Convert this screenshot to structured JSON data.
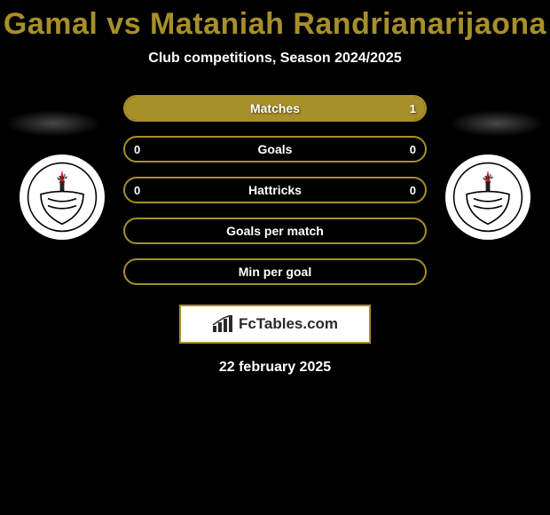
{
  "header": {
    "title": "Gamal vs Mataniah Randrianarijaona",
    "title_color": "#a78f2a",
    "subtitle": "Club competitions, Season 2024/2025"
  },
  "colors": {
    "accent": "#a78f2a",
    "accent_light": "#bfa63a",
    "background": "#000000",
    "text": "#ffffff"
  },
  "stats": {
    "type": "comparison-bars",
    "border_color": "#a78f2a",
    "rows": [
      {
        "label": "Matches",
        "left": "",
        "right": "1",
        "fill_side": "right",
        "fill_pct": 100,
        "fill_color": "#a78f2a"
      },
      {
        "label": "Goals",
        "left": "0",
        "right": "0",
        "fill_side": "none",
        "fill_pct": 0,
        "fill_color": "#a78f2a"
      },
      {
        "label": "Hattricks",
        "left": "0",
        "right": "0",
        "fill_side": "none",
        "fill_pct": 0,
        "fill_color": "#a78f2a"
      },
      {
        "label": "Goals per match",
        "left": "",
        "right": "",
        "fill_side": "none",
        "fill_pct": 0,
        "fill_color": "#a78f2a"
      },
      {
        "label": "Min per goal",
        "left": "",
        "right": "",
        "fill_side": "none",
        "fill_pct": 0,
        "fill_color": "#a78f2a"
      }
    ]
  },
  "brand": {
    "text": "FcTables.com",
    "border_color": "#a78f2a"
  },
  "footer": {
    "date": "22 february 2025"
  },
  "logos": {
    "left_name": "club-logo-left",
    "right_name": "club-logo-right"
  }
}
